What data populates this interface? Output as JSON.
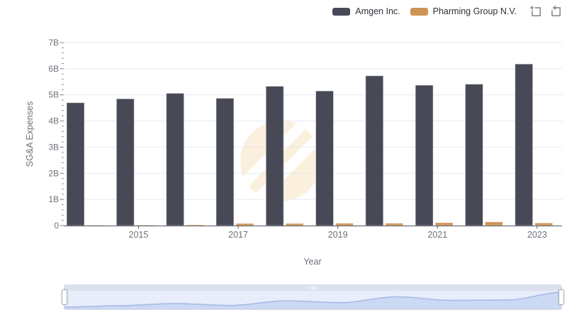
{
  "legend": {
    "items": [
      {
        "label": "Amgen Inc.",
        "color": "#474a56"
      },
      {
        "label": "Pharming Group N.V.",
        "color": "#cd9355"
      }
    ]
  },
  "toolbox": {
    "buttons": [
      {
        "name": "zoom-select"
      },
      {
        "name": "restore"
      }
    ]
  },
  "chart_data": {
    "type": "bar",
    "title": "",
    "categories": [
      "2014",
      "2015",
      "2016",
      "2017",
      "2018",
      "2019",
      "2020",
      "2021",
      "2022",
      "2023"
    ],
    "series": [
      {
        "name": "Amgen Inc.",
        "color": "#474a56",
        "values": [
          4.7,
          4.85,
          5.06,
          4.87,
          5.33,
          5.15,
          5.73,
          5.37,
          5.41,
          6.18
        ]
      },
      {
        "name": "Pharming Group N.V.",
        "color": "#cd9355",
        "values": [
          0.01,
          0.02,
          0.03,
          0.08,
          0.08,
          0.09,
          0.09,
          0.11,
          0.14,
          0.1
        ]
      }
    ],
    "xlabel": "Year",
    "ylabel": "SG&A Expenses",
    "ylim": [
      0,
      7
    ],
    "unit": "billions USD",
    "ytick_labels": [
      "0",
      "1B",
      "2B",
      "3B",
      "4B",
      "5B",
      "6B",
      "7B"
    ],
    "visible_x_labels": [
      "2015",
      "2017",
      "2019",
      "2021",
      "2023"
    ],
    "legend_position": "top-right",
    "grid": true
  },
  "slider": {
    "range_percent": [
      0,
      100
    ]
  }
}
